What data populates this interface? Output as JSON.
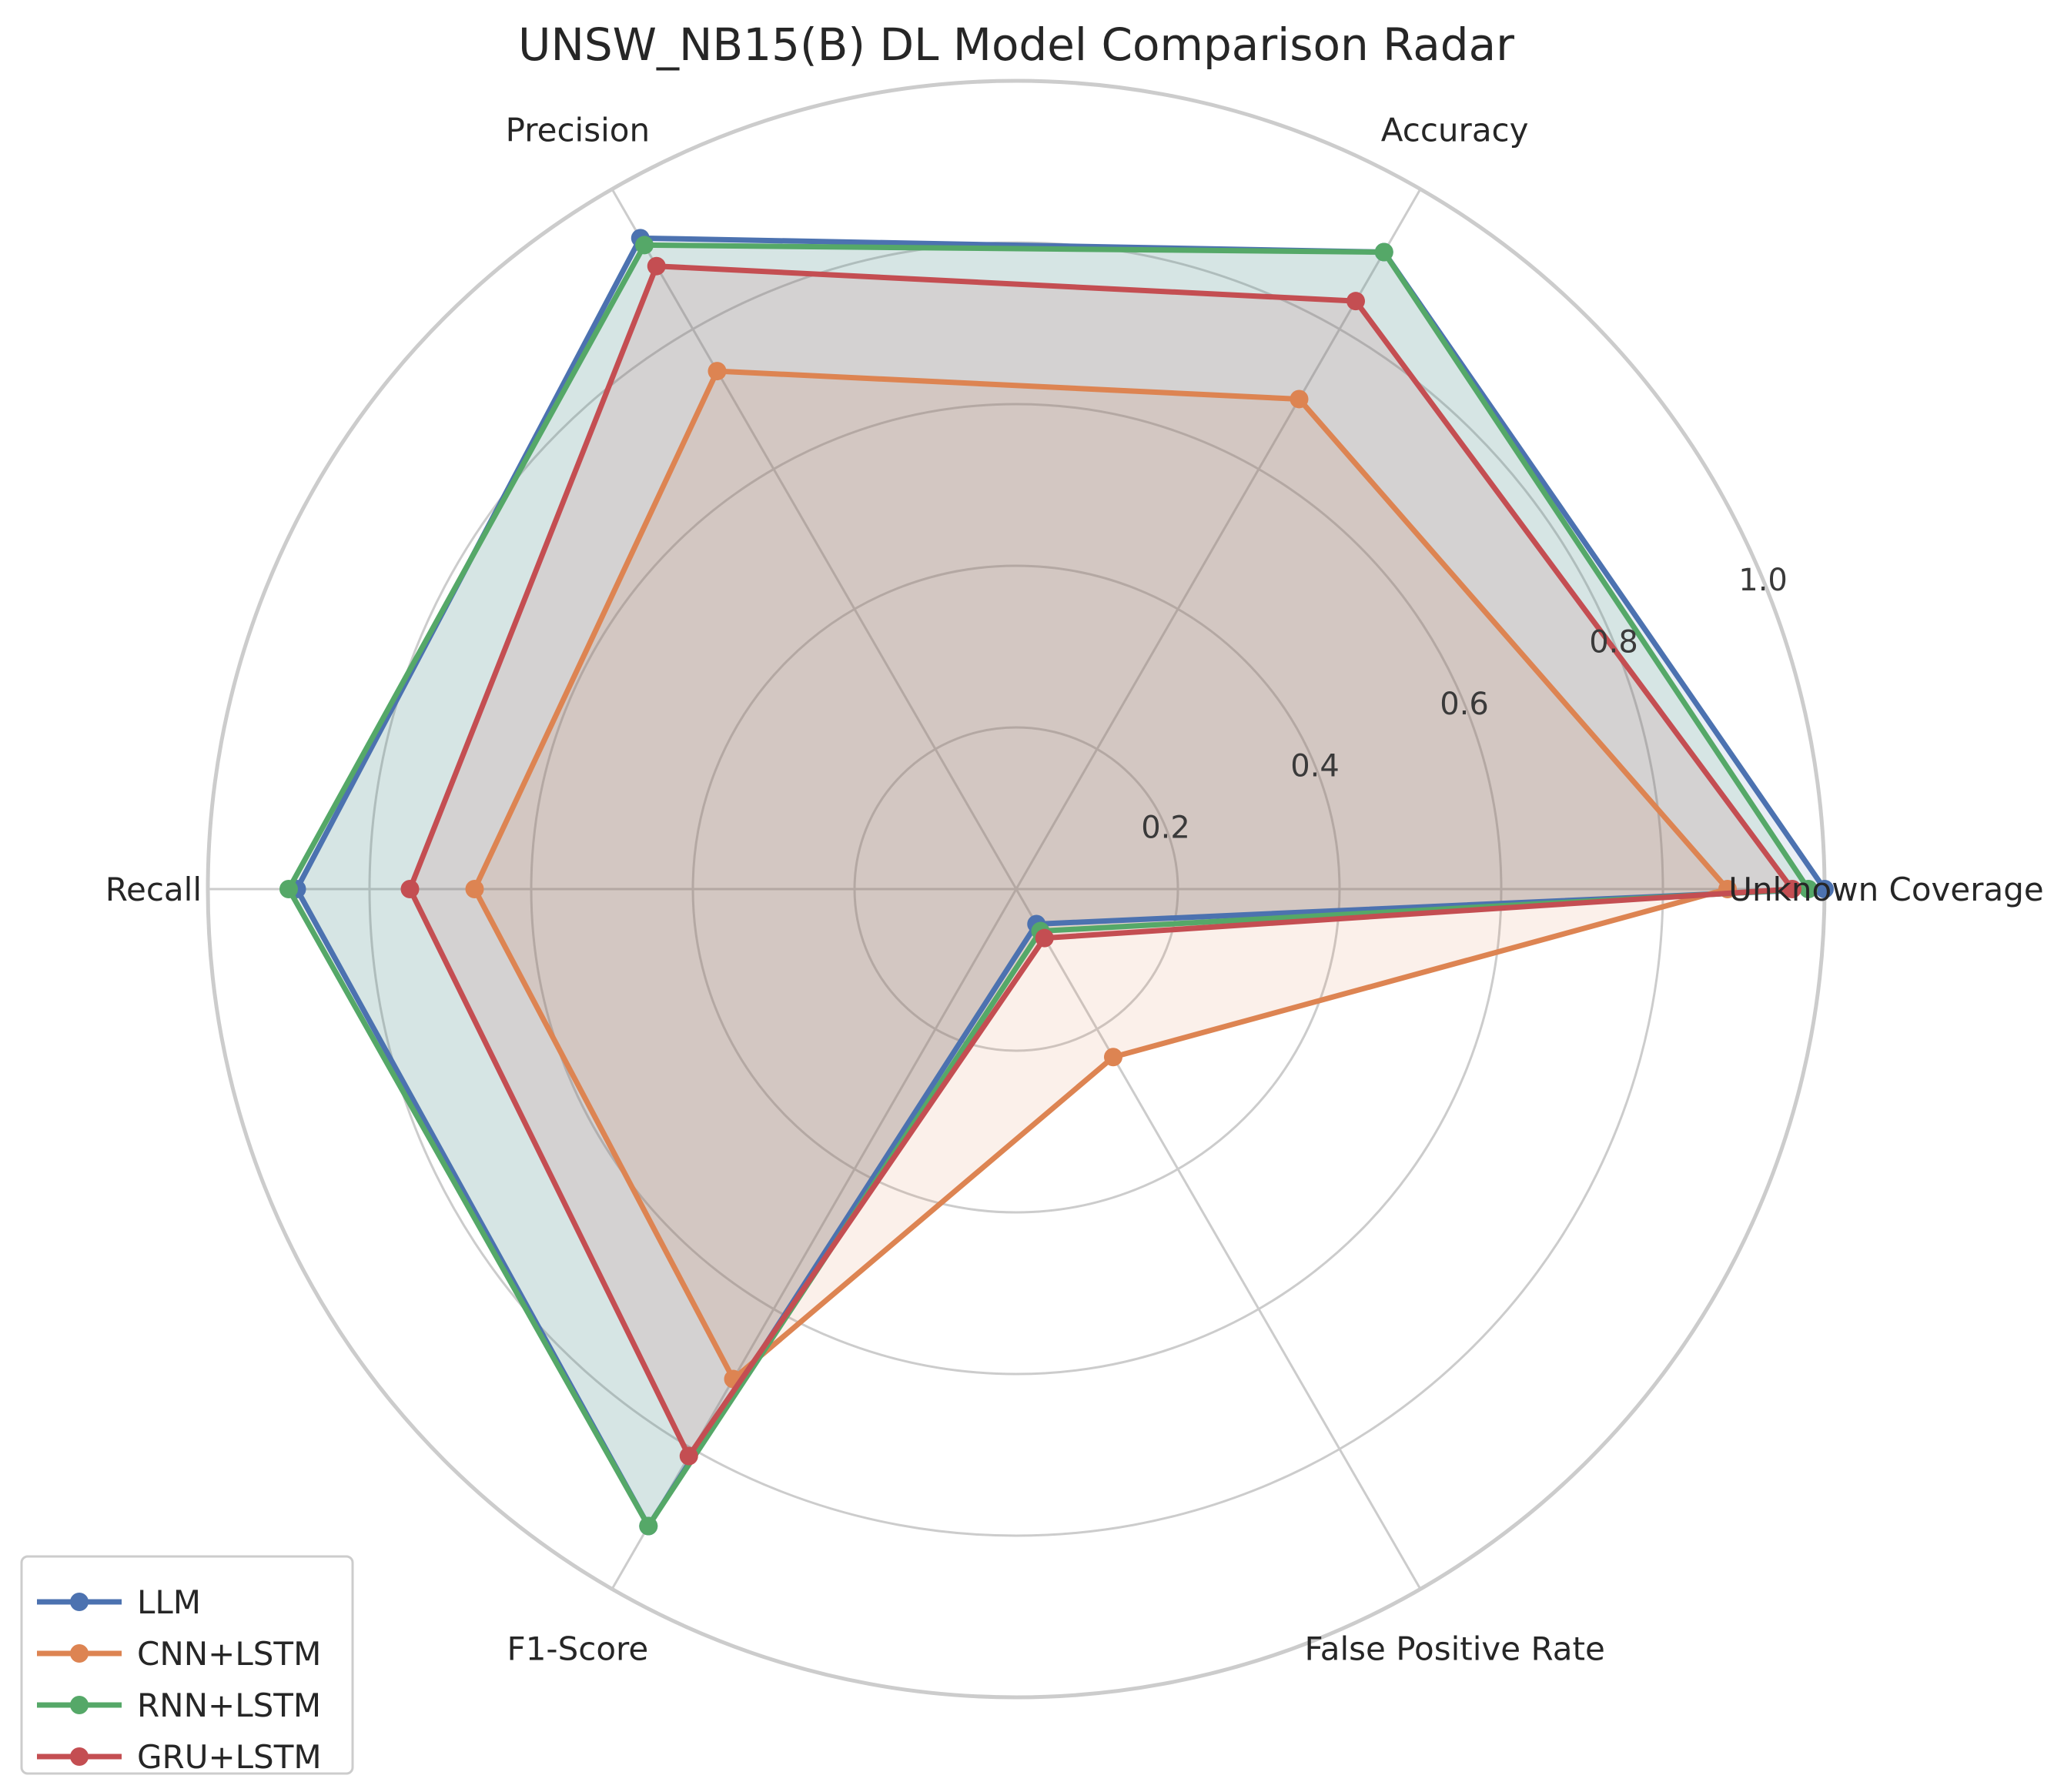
{
  "chart_data": {
    "type": "radar",
    "title": "UNSW_NB15(B) DL Model Comparison Radar",
    "axes": [
      "Unknown Coverage",
      "Accuracy",
      "Precision",
      "Recall",
      "F1-Score",
      "False Positive Rate"
    ],
    "rlim": [
      0,
      1.0
    ],
    "r_ticks": [
      0.2,
      0.4,
      0.6,
      0.8,
      1.0
    ],
    "r_tick_labels": [
      "0.2",
      "0.4",
      "0.6",
      "0.8",
      "1.0"
    ],
    "grid": true,
    "legend_position": "lower-left",
    "series": [
      {
        "name": "LLM",
        "color": "#4c72b0",
        "values": [
          1.0,
          0.91,
          0.93,
          0.89,
          0.91,
          0.05
        ]
      },
      {
        "name": "CNN+LSTM",
        "color": "#dd8452",
        "values": [
          0.88,
          0.7,
          0.74,
          0.67,
          0.7,
          0.24
        ]
      },
      {
        "name": "RNN+LSTM",
        "color": "#55a868",
        "values": [
          0.98,
          0.91,
          0.92,
          0.9,
          0.91,
          0.06
        ]
      },
      {
        "name": "GRU+LSTM",
        "color": "#c44e52",
        "values": [
          0.96,
          0.84,
          0.89,
          0.75,
          0.81,
          0.07
        ]
      }
    ]
  }
}
